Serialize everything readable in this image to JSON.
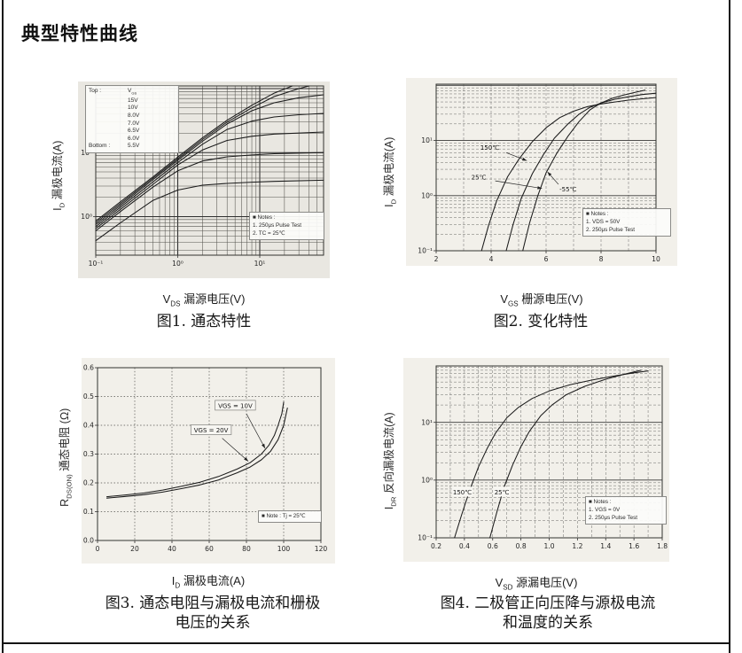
{
  "page": {
    "title": "典型特性曲线"
  },
  "figures": [
    {
      "y_label": {
        "sym": "I",
        "sub": "D",
        "rest": " 漏极电流(A)"
      },
      "x_label": {
        "sym": "V",
        "sub": "DS",
        "rest": " 漏源电压(V)"
      },
      "caption_lines": [
        "图1. 通态特性"
      ],
      "legend": {
        "top_label": "Top :",
        "header_sym": "V",
        "header_sub": "GS",
        "items": [
          "15V",
          "10V",
          "8.0V",
          "7.0V",
          "6.5V",
          "6.0V"
        ],
        "bottom_label": "Bottom :",
        "bottom_value": "5.5V"
      },
      "notes": [
        "■ Notes :",
        "1. 250μs Pulse Test",
        "2. TC = 25℃"
      ]
    },
    {
      "y_label": {
        "sym": "I",
        "sub": "D",
        "rest": " 漏极电流(A)"
      },
      "x_label": {
        "sym": "V",
        "sub": "GS",
        "rest": " 栅源电压(V)"
      },
      "caption_lines": [
        "图2. 变化特性"
      ],
      "notes": [
        "■ Notes :",
        "1. VDS = 50V",
        "2. 250μs Pulse Test"
      ]
    },
    {
      "y_label": {
        "sym": "R",
        "sub": "DS(ON)",
        "rest": " 通态电阻 (Ω)"
      },
      "x_label": {
        "sym": "I",
        "sub": "D",
        "rest": " 漏极电流(A)"
      },
      "caption_lines": [
        "图3. 通态电阻与漏极电流和栅极",
        "电压的关系"
      ],
      "notes": [
        "■ Note : Tj = 25℃"
      ]
    },
    {
      "y_label": {
        "sym": "I",
        "sub": "DR",
        "rest": " 反向漏极电流(A)"
      },
      "x_label": {
        "sym": "V",
        "sub": "SD",
        "rest": " 源漏电压(V)"
      },
      "caption_lines": [
        "图4. 二极管正向压降与源极电流",
        "和温度的关系"
      ],
      "notes": [
        "■ Notes :",
        "1. VGS = 0V",
        "2. 250μs Pulse Test"
      ]
    }
  ],
  "chart_data": [
    {
      "type": "line",
      "title": "图1. 通态特性",
      "xlabel": "VDS 漏源电压(V)",
      "ylabel": "ID 漏极电流(A)",
      "x_axis": {
        "scale": "log",
        "min": 0.1,
        "max": 60,
        "ticks": [
          {
            "v": 0.1,
            "label": "10⁻¹"
          },
          {
            "v": 1,
            "label": "10⁰"
          },
          {
            "v": 10,
            "label": "10¹"
          }
        ]
      },
      "y_axis": {
        "scale": "log",
        "min": 0.25,
        "max": 110,
        "ticks": [
          {
            "v": 1,
            "label": "10⁰"
          },
          {
            "v": 10,
            "label": "10¹"
          }
        ]
      },
      "legend_note": "Top: VGS 15V,10V,8.0V,7.0V,6.5V,6.0V; Bottom: 5.5V",
      "series": [
        {
          "name": "VGS=15V",
          "points": [
            [
              0.1,
              0.85
            ],
            [
              0.2,
              1.7
            ],
            [
              0.5,
              4.2
            ],
            [
              1,
              8.5
            ],
            [
              2,
              17
            ],
            [
              4,
              32
            ],
            [
              8,
              55
            ],
            [
              15,
              85
            ],
            [
              25,
              110
            ]
          ]
        },
        {
          "name": "VGS=10V",
          "points": [
            [
              0.1,
              0.8
            ],
            [
              0.2,
              1.6
            ],
            [
              0.5,
              4.0
            ],
            [
              1,
              8.0
            ],
            [
              2,
              16
            ],
            [
              4,
              30
            ],
            [
              8,
              50
            ],
            [
              15,
              75
            ],
            [
              30,
              100
            ],
            [
              40,
              110
            ]
          ]
        },
        {
          "name": "VGS=8.0V",
          "points": [
            [
              0.1,
              0.75
            ],
            [
              0.2,
              1.5
            ],
            [
              0.5,
              3.8
            ],
            [
              1,
              7.6
            ],
            [
              2,
              15
            ],
            [
              4,
              28
            ],
            [
              8,
              45
            ],
            [
              15,
              60
            ],
            [
              30,
              72
            ],
            [
              60,
              80
            ]
          ]
        },
        {
          "name": "VGS=7.0V",
          "points": [
            [
              0.1,
              0.7
            ],
            [
              0.2,
              1.4
            ],
            [
              0.5,
              3.5
            ],
            [
              1,
              7.0
            ],
            [
              2,
              13.5
            ],
            [
              4,
              23
            ],
            [
              8,
              31
            ],
            [
              15,
              36
            ],
            [
              30,
              39
            ],
            [
              60,
              41
            ]
          ]
        },
        {
          "name": "VGS=6.5V",
          "points": [
            [
              0.1,
              0.65
            ],
            [
              0.2,
              1.3
            ],
            [
              0.5,
              3.2
            ],
            [
              1,
              6.4
            ],
            [
              2,
              11
            ],
            [
              4,
              15.5
            ],
            [
              8,
              18
            ],
            [
              15,
              19.5
            ],
            [
              60,
              21
            ]
          ]
        },
        {
          "name": "VGS=6.0V",
          "points": [
            [
              0.1,
              0.6
            ],
            [
              0.2,
              1.2
            ],
            [
              0.5,
              2.9
            ],
            [
              1,
              5.2
            ],
            [
              2,
              7.4
            ],
            [
              4,
              8.6
            ],
            [
              8,
              9.2
            ],
            [
              15,
              9.6
            ],
            [
              60,
              10
            ]
          ]
        },
        {
          "name": "VGS=5.5V",
          "points": [
            [
              0.1,
              0.42
            ],
            [
              0.2,
              0.8
            ],
            [
              0.5,
              1.8
            ],
            [
              1,
              2.6
            ],
            [
              2,
              3.1
            ],
            [
              4,
              3.3
            ],
            [
              8,
              3.45
            ],
            [
              15,
              3.55
            ],
            [
              60,
              3.7
            ]
          ]
        }
      ],
      "annotations": []
    },
    {
      "type": "line",
      "title": "图2. 变化特性",
      "xlabel": "VGS 栅源电压(V)",
      "ylabel": "ID 漏极电流(A)",
      "x_axis": {
        "scale": "linear",
        "min": 2,
        "max": 10,
        "ticks": [
          {
            "v": 2,
            "label": "2"
          },
          {
            "v": 4,
            "label": "4"
          },
          {
            "v": 6,
            "label": "6"
          },
          {
            "v": 8,
            "label": "8"
          },
          {
            "v": 10,
            "label": "10"
          }
        ]
      },
      "y_axis": {
        "scale": "log",
        "min": 0.1,
        "max": 105,
        "ticks": [
          {
            "v": 0.1,
            "label": "10⁻¹"
          },
          {
            "v": 1,
            "label": "10⁰"
          },
          {
            "v": 10,
            "label": "10¹"
          }
        ]
      },
      "series": [
        {
          "name": "150℃",
          "points": [
            [
              3.65,
              0.1
            ],
            [
              3.9,
              0.28
            ],
            [
              4.2,
              0.8
            ],
            [
              4.6,
              2.2
            ],
            [
              5.0,
              4.5
            ],
            [
              5.5,
              9.5
            ],
            [
              6.0,
              17
            ],
            [
              6.5,
              26
            ],
            [
              7.0,
              34
            ],
            [
              7.5,
              41
            ],
            [
              8.0,
              46
            ],
            [
              8.5,
              50
            ],
            [
              9.0,
              54
            ],
            [
              9.5,
              57
            ],
            [
              10,
              60
            ]
          ]
        },
        {
          "name": "25℃",
          "points": [
            [
              4.55,
              0.1
            ],
            [
              4.8,
              0.3
            ],
            [
              5.1,
              0.9
            ],
            [
              5.5,
              2.5
            ],
            [
              5.9,
              5.5
            ],
            [
              6.3,
              11
            ],
            [
              6.8,
              20
            ],
            [
              7.2,
              30
            ],
            [
              7.6,
              40
            ],
            [
              8.0,
              48
            ],
            [
              8.5,
              56
            ],
            [
              9.0,
              62
            ],
            [
              9.5,
              68
            ],
            [
              10,
              72
            ]
          ]
        },
        {
          "name": "-55℃",
          "points": [
            [
              5.15,
              0.1
            ],
            [
              5.4,
              0.32
            ],
            [
              5.7,
              1.0
            ],
            [
              6.0,
              2.6
            ],
            [
              6.4,
              6
            ],
            [
              6.8,
              12
            ],
            [
              7.2,
              22
            ],
            [
              7.6,
              36
            ],
            [
              8.0,
              48
            ],
            [
              8.4,
              58
            ],
            [
              8.8,
              66
            ],
            [
              9.2,
              74
            ],
            [
              9.6,
              82
            ]
          ]
        }
      ],
      "annotations": [
        {
          "text": "150℃",
          "x": 3.95,
          "y": 7.5,
          "arrow": [
            4.55,
            6.0,
            5.3,
            4.3
          ]
        },
        {
          "text": "25℃",
          "x": 3.55,
          "y": 2.15,
          "arrow": [
            4.15,
            1.85,
            5.85,
            1.35
          ]
        },
        {
          "text": "-55℃",
          "x": 6.8,
          "y": 1.3,
          "arrow": [
            6.45,
            1.6,
            6.05,
            2.7
          ]
        }
      ]
    },
    {
      "type": "line",
      "title": "图3. 通态电阻与漏极电流和栅极电压的关系",
      "xlabel": "ID 漏极电流(A)",
      "ylabel": "RDS(ON) 通态电阻 (Ω)",
      "x_axis": {
        "scale": "linear",
        "min": 0,
        "max": 120,
        "ticks": [
          {
            "v": 0,
            "label": "0"
          },
          {
            "v": 20,
            "label": "20"
          },
          {
            "v": 40,
            "label": "40"
          },
          {
            "v": 60,
            "label": "60"
          },
          {
            "v": 80,
            "label": "80"
          },
          {
            "v": 100,
            "label": "100"
          },
          {
            "v": 120,
            "label": "120"
          }
        ]
      },
      "y_axis": {
        "scale": "linear",
        "min": 0,
        "max": 0.6,
        "ticks": [
          {
            "v": 0,
            "label": "0.0"
          },
          {
            "v": 0.1,
            "label": "0.1"
          },
          {
            "v": 0.2,
            "label": "0.2"
          },
          {
            "v": 0.3,
            "label": "0.3"
          },
          {
            "v": 0.4,
            "label": "0.4"
          },
          {
            "v": 0.5,
            "label": "0.5"
          },
          {
            "v": 0.6,
            "label": "0.6"
          }
        ]
      },
      "series": [
        {
          "name": "VGS=10V",
          "points": [
            [
              5,
              0.152
            ],
            [
              15,
              0.158
            ],
            [
              25,
              0.165
            ],
            [
              35,
              0.175
            ],
            [
              45,
              0.188
            ],
            [
              55,
              0.202
            ],
            [
              65,
              0.222
            ],
            [
              75,
              0.248
            ],
            [
              82,
              0.27
            ],
            [
              88,
              0.3
            ],
            [
              92,
              0.33
            ],
            [
              95,
              0.365
            ],
            [
              97,
              0.4
            ],
            [
              99,
              0.44
            ],
            [
              100,
              0.48
            ]
          ]
        },
        {
          "name": "VGS=20V",
          "points": [
            [
              5,
              0.147
            ],
            [
              15,
              0.153
            ],
            [
              25,
              0.159
            ],
            [
              35,
              0.168
            ],
            [
              45,
              0.18
            ],
            [
              55,
              0.193
            ],
            [
              65,
              0.21
            ],
            [
              75,
              0.235
            ],
            [
              82,
              0.255
            ],
            [
              88,
              0.28
            ],
            [
              93,
              0.31
            ],
            [
              97,
              0.35
            ],
            [
              100,
              0.4
            ],
            [
              102,
              0.46
            ]
          ]
        }
      ],
      "annotations": [
        {
          "text": "VGS = 10V",
          "x": 74,
          "y": 0.468,
          "box": true,
          "arrow": [
            80,
            0.44,
            90,
            0.32
          ]
        },
        {
          "text": "VGS = 20V",
          "x": 61,
          "y": 0.383,
          "box": true,
          "arrow": [
            67,
            0.355,
            81,
            0.275
          ]
        }
      ]
    },
    {
      "type": "line",
      "title": "图4. 二极管正向压降与源极电流和温度的关系",
      "xlabel": "VSD 源漏电压(V)",
      "ylabel": "IDR 反向漏极电流(A)",
      "x_axis": {
        "scale": "linear",
        "min": 0.2,
        "max": 1.8,
        "ticks": [
          {
            "v": 0.2,
            "label": "0.2"
          },
          {
            "v": 0.4,
            "label": "0.4"
          },
          {
            "v": 0.6,
            "label": "0.6"
          },
          {
            "v": 0.8,
            "label": "0.8"
          },
          {
            "v": 1.0,
            "label": "1.0"
          },
          {
            "v": 1.2,
            "label": "1.2"
          },
          {
            "v": 1.4,
            "label": "1.4"
          },
          {
            "v": 1.6,
            "label": "1.6"
          },
          {
            "v": 1.8,
            "label": "1.8"
          }
        ]
      },
      "y_axis": {
        "scale": "log",
        "min": 0.1,
        "max": 95,
        "ticks": [
          {
            "v": 0.1,
            "label": "10⁻¹"
          },
          {
            "v": 1,
            "label": "10⁰"
          },
          {
            "v": 10,
            "label": "10¹"
          }
        ]
      },
      "series": [
        {
          "name": "150℃",
          "points": [
            [
              0.33,
              0.1
            ],
            [
              0.38,
              0.25
            ],
            [
              0.44,
              0.7
            ],
            [
              0.5,
              1.7
            ],
            [
              0.56,
              3.5
            ],
            [
              0.62,
              6.5
            ],
            [
              0.7,
              12
            ],
            [
              0.78,
              18
            ],
            [
              0.88,
              26
            ],
            [
              1.0,
              35
            ],
            [
              1.15,
              45
            ],
            [
              1.3,
              54
            ],
            [
              1.45,
              63
            ],
            [
              1.6,
              72
            ],
            [
              1.7,
              78
            ]
          ]
        },
        {
          "name": "25℃",
          "points": [
            [
              0.58,
              0.1
            ],
            [
              0.63,
              0.28
            ],
            [
              0.68,
              0.75
            ],
            [
              0.74,
              1.8
            ],
            [
              0.8,
              3.8
            ],
            [
              0.86,
              7
            ],
            [
              0.94,
              13
            ],
            [
              1.02,
              20
            ],
            [
              1.12,
              30
            ],
            [
              1.25,
              42
            ],
            [
              1.4,
              56
            ],
            [
              1.55,
              70
            ],
            [
              1.65,
              80
            ]
          ]
        }
      ],
      "annotations": [
        {
          "text": "150℃",
          "x": 0.385,
          "y": 0.62,
          "bg": true
        },
        {
          "text": "25℃",
          "x": 0.665,
          "y": 0.62,
          "bg": true
        }
      ]
    }
  ]
}
